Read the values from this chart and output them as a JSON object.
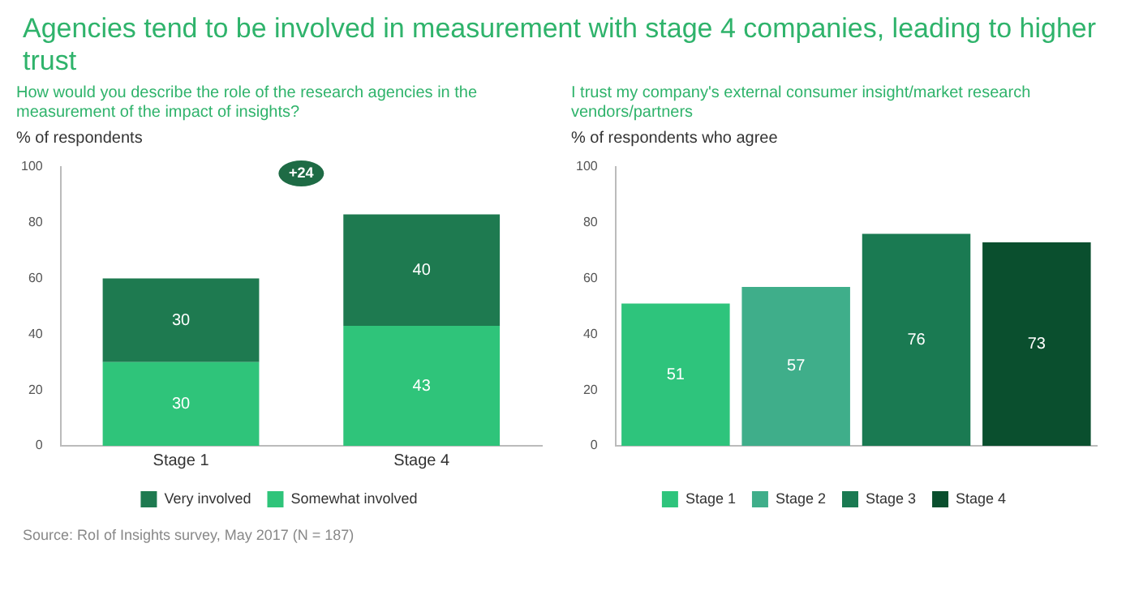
{
  "chart_data": [
    {
      "type": "bar",
      "title": "Agencies tend to be involved in measurement with stage 4 companies, leading to higher trust",
      "subtitle": "How would you describe the role of the research agencies in the measurement of the impact of insights?",
      "ylabel": "% of respondents",
      "categories": [
        "Stage 1",
        "Stage 4"
      ],
      "stacked": true,
      "series": [
        {
          "name": "Somewhat involved",
          "color": "#2fc47a",
          "values": [
            30,
            43
          ]
        },
        {
          "name": "Very involved",
          "color": "#1e7a50",
          "values": [
            30,
            40
          ]
        }
      ],
      "ylim": [
        0,
        100
      ],
      "yticks": [
        0,
        20,
        40,
        60,
        80,
        100
      ],
      "grid": false,
      "legend": "bottom",
      "data_labels": true,
      "annotations": [
        "+24",
        "Source: RoI of Insights survey, May 2017 (N = 187)"
      ]
    },
    {
      "type": "bar",
      "title": "I trust my company's external consumer insight/market research vendors/partners",
      "ylabel": "% of respondents who agree",
      "categories": [
        null,
        null,
        null,
        null
      ],
      "series": [
        {
          "name": "Stage 1",
          "color": "#2ec47c",
          "values": [
            51,
            null,
            null,
            null
          ]
        },
        {
          "name": "Stage 2",
          "color": "#3fae8a",
          "values": [
            null,
            57,
            null,
            null
          ]
        },
        {
          "name": "Stage 3",
          "color": "#1a7a52",
          "values": [
            null,
            null,
            76,
            null
          ]
        },
        {
          "name": "Stage 4",
          "color": "#0a4f2e",
          "values": [
            null,
            null,
            null,
            73
          ]
        }
      ],
      "ylim": [
        0,
        100
      ],
      "yticks": [
        0,
        20,
        40,
        60,
        80,
        100
      ],
      "grid": false,
      "legend": "bottom",
      "data_labels": true
    }
  ]
}
